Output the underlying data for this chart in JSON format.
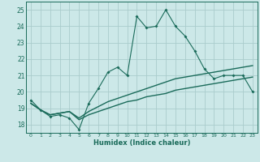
{
  "title": "",
  "xlabel": "Humidex (Indice chaleur)",
  "ylabel": "",
  "bg_color": "#cce8e8",
  "grid_color": "#aacccc",
  "line_color": "#1a6b5a",
  "xlim": [
    -0.5,
    23.5
  ],
  "ylim": [
    17.5,
    25.5
  ],
  "yticks": [
    18,
    19,
    20,
    21,
    22,
    23,
    24,
    25
  ],
  "xticks": [
    0,
    1,
    2,
    3,
    4,
    5,
    6,
    7,
    8,
    9,
    10,
    11,
    12,
    13,
    14,
    15,
    16,
    17,
    18,
    19,
    20,
    21,
    22,
    23
  ],
  "series1_x": [
    0,
    1,
    2,
    3,
    4,
    5,
    6,
    7,
    8,
    9,
    10,
    11,
    12,
    13,
    14,
    15,
    16,
    17,
    18,
    19,
    20,
    21,
    22,
    23
  ],
  "series1_y": [
    19.5,
    18.9,
    18.5,
    18.6,
    18.4,
    17.7,
    19.3,
    20.2,
    21.2,
    21.5,
    21.0,
    24.6,
    23.9,
    24.0,
    25.0,
    24.0,
    23.4,
    22.5,
    21.4,
    20.8,
    21.0,
    21.0,
    21.0,
    20.0
  ],
  "series2_x": [
    0,
    1,
    2,
    3,
    4,
    5,
    6,
    7,
    8,
    9,
    10,
    11,
    12,
    13,
    14,
    15,
    16,
    17,
    18,
    19,
    20,
    21,
    22,
    23
  ],
  "series2_y": [
    19.3,
    18.9,
    18.6,
    18.7,
    18.8,
    18.4,
    18.8,
    19.1,
    19.4,
    19.6,
    19.8,
    20.0,
    20.2,
    20.4,
    20.6,
    20.8,
    20.9,
    21.0,
    21.1,
    21.2,
    21.3,
    21.4,
    21.5,
    21.6
  ],
  "series3_x": [
    0,
    1,
    2,
    3,
    4,
    5,
    6,
    7,
    8,
    9,
    10,
    11,
    12,
    13,
    14,
    15,
    16,
    17,
    18,
    19,
    20,
    21,
    22,
    23
  ],
  "series3_y": [
    19.3,
    18.9,
    18.6,
    18.7,
    18.8,
    18.3,
    18.6,
    18.8,
    19.0,
    19.2,
    19.4,
    19.5,
    19.7,
    19.8,
    19.9,
    20.1,
    20.2,
    20.3,
    20.4,
    20.5,
    20.6,
    20.7,
    20.8,
    20.9
  ]
}
